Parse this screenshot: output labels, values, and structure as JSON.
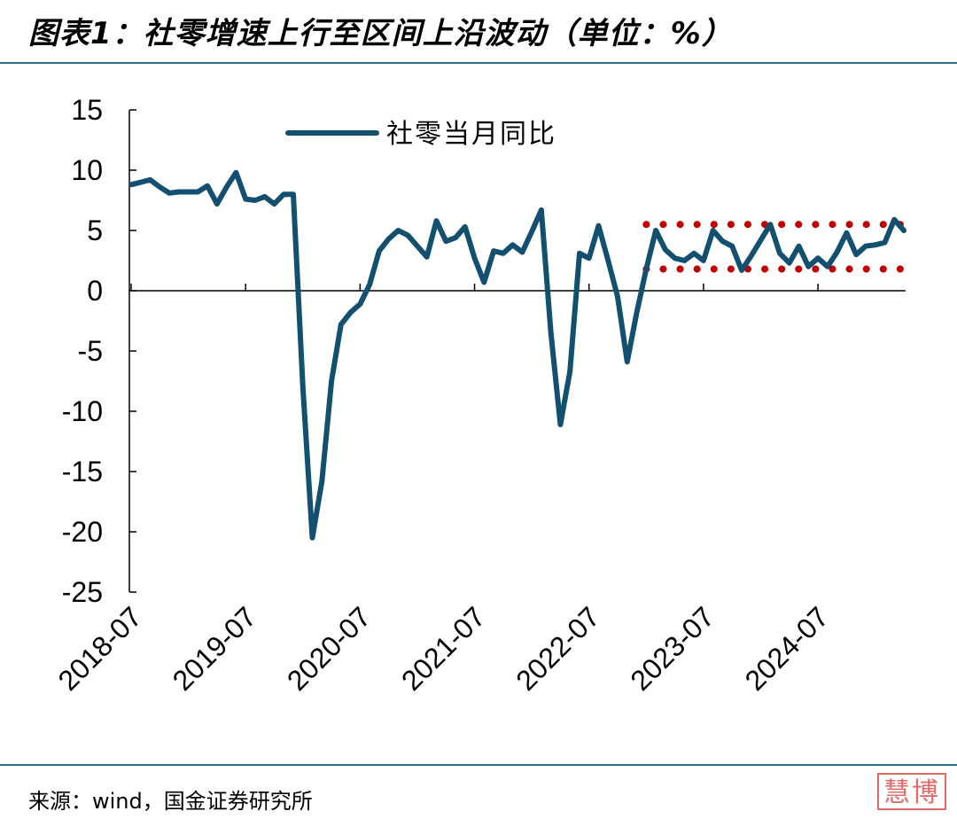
{
  "title": "图表1：社零增速上行至区间上沿波动（单位：%）",
  "source": "来源：wind，国金证券研究所",
  "stamp": "慧博",
  "colors": {
    "line": "#13506f",
    "band": "#c00000",
    "rule": "#2e6e85"
  },
  "chart_data": {
    "type": "line",
    "title": "",
    "xlabel": "",
    "ylabel": "",
    "ylim": [
      -25,
      15
    ],
    "yticks": [
      15,
      10,
      5,
      0,
      -5,
      -10,
      -15,
      -20,
      -25
    ],
    "xtick_labels": [
      "2018-07",
      "2019-07",
      "2020-07",
      "2021-07",
      "2022-07",
      "2023-07",
      "2024-07"
    ],
    "legend": {
      "position": "top-center"
    },
    "grid": false,
    "series": [
      {
        "name": "社零当月同比",
        "start": "2018-07",
        "frequency": "monthly",
        "values": [
          8.8,
          9.0,
          9.2,
          8.6,
          8.1,
          8.2,
          8.2,
          8.2,
          8.7,
          7.2,
          8.6,
          9.8,
          7.6,
          7.5,
          7.8,
          7.2,
          8.0,
          8.0,
          -8.0,
          -20.5,
          -15.8,
          -7.5,
          -2.8,
          -1.8,
          -1.1,
          0.5,
          3.3,
          4.3,
          5.0,
          4.6,
          3.7,
          2.8,
          5.8,
          4.1,
          4.4,
          5.3,
          2.7,
          0.7,
          3.3,
          3.1,
          3.8,
          3.2,
          4.9,
          6.7,
          -3.5,
          -11.1,
          -6.7,
          3.1,
          2.7,
          5.4,
          2.5,
          -0.5,
          -5.9,
          -1.8,
          1.8,
          5.0,
          3.4,
          2.7,
          2.5,
          3.1,
          2.5,
          5.0,
          4.1,
          3.7,
          1.7,
          2.9,
          4.2,
          5.5,
          3.1,
          2.3,
          3.7,
          2.0,
          2.7,
          2.0,
          3.2,
          4.8,
          3.0,
          3.7,
          3.8,
          4.0,
          5.9,
          5.0
        ]
      }
    ],
    "band": {
      "upper": 5.5,
      "lower": 1.8,
      "start": "2023-01",
      "end": "2025-04"
    }
  }
}
